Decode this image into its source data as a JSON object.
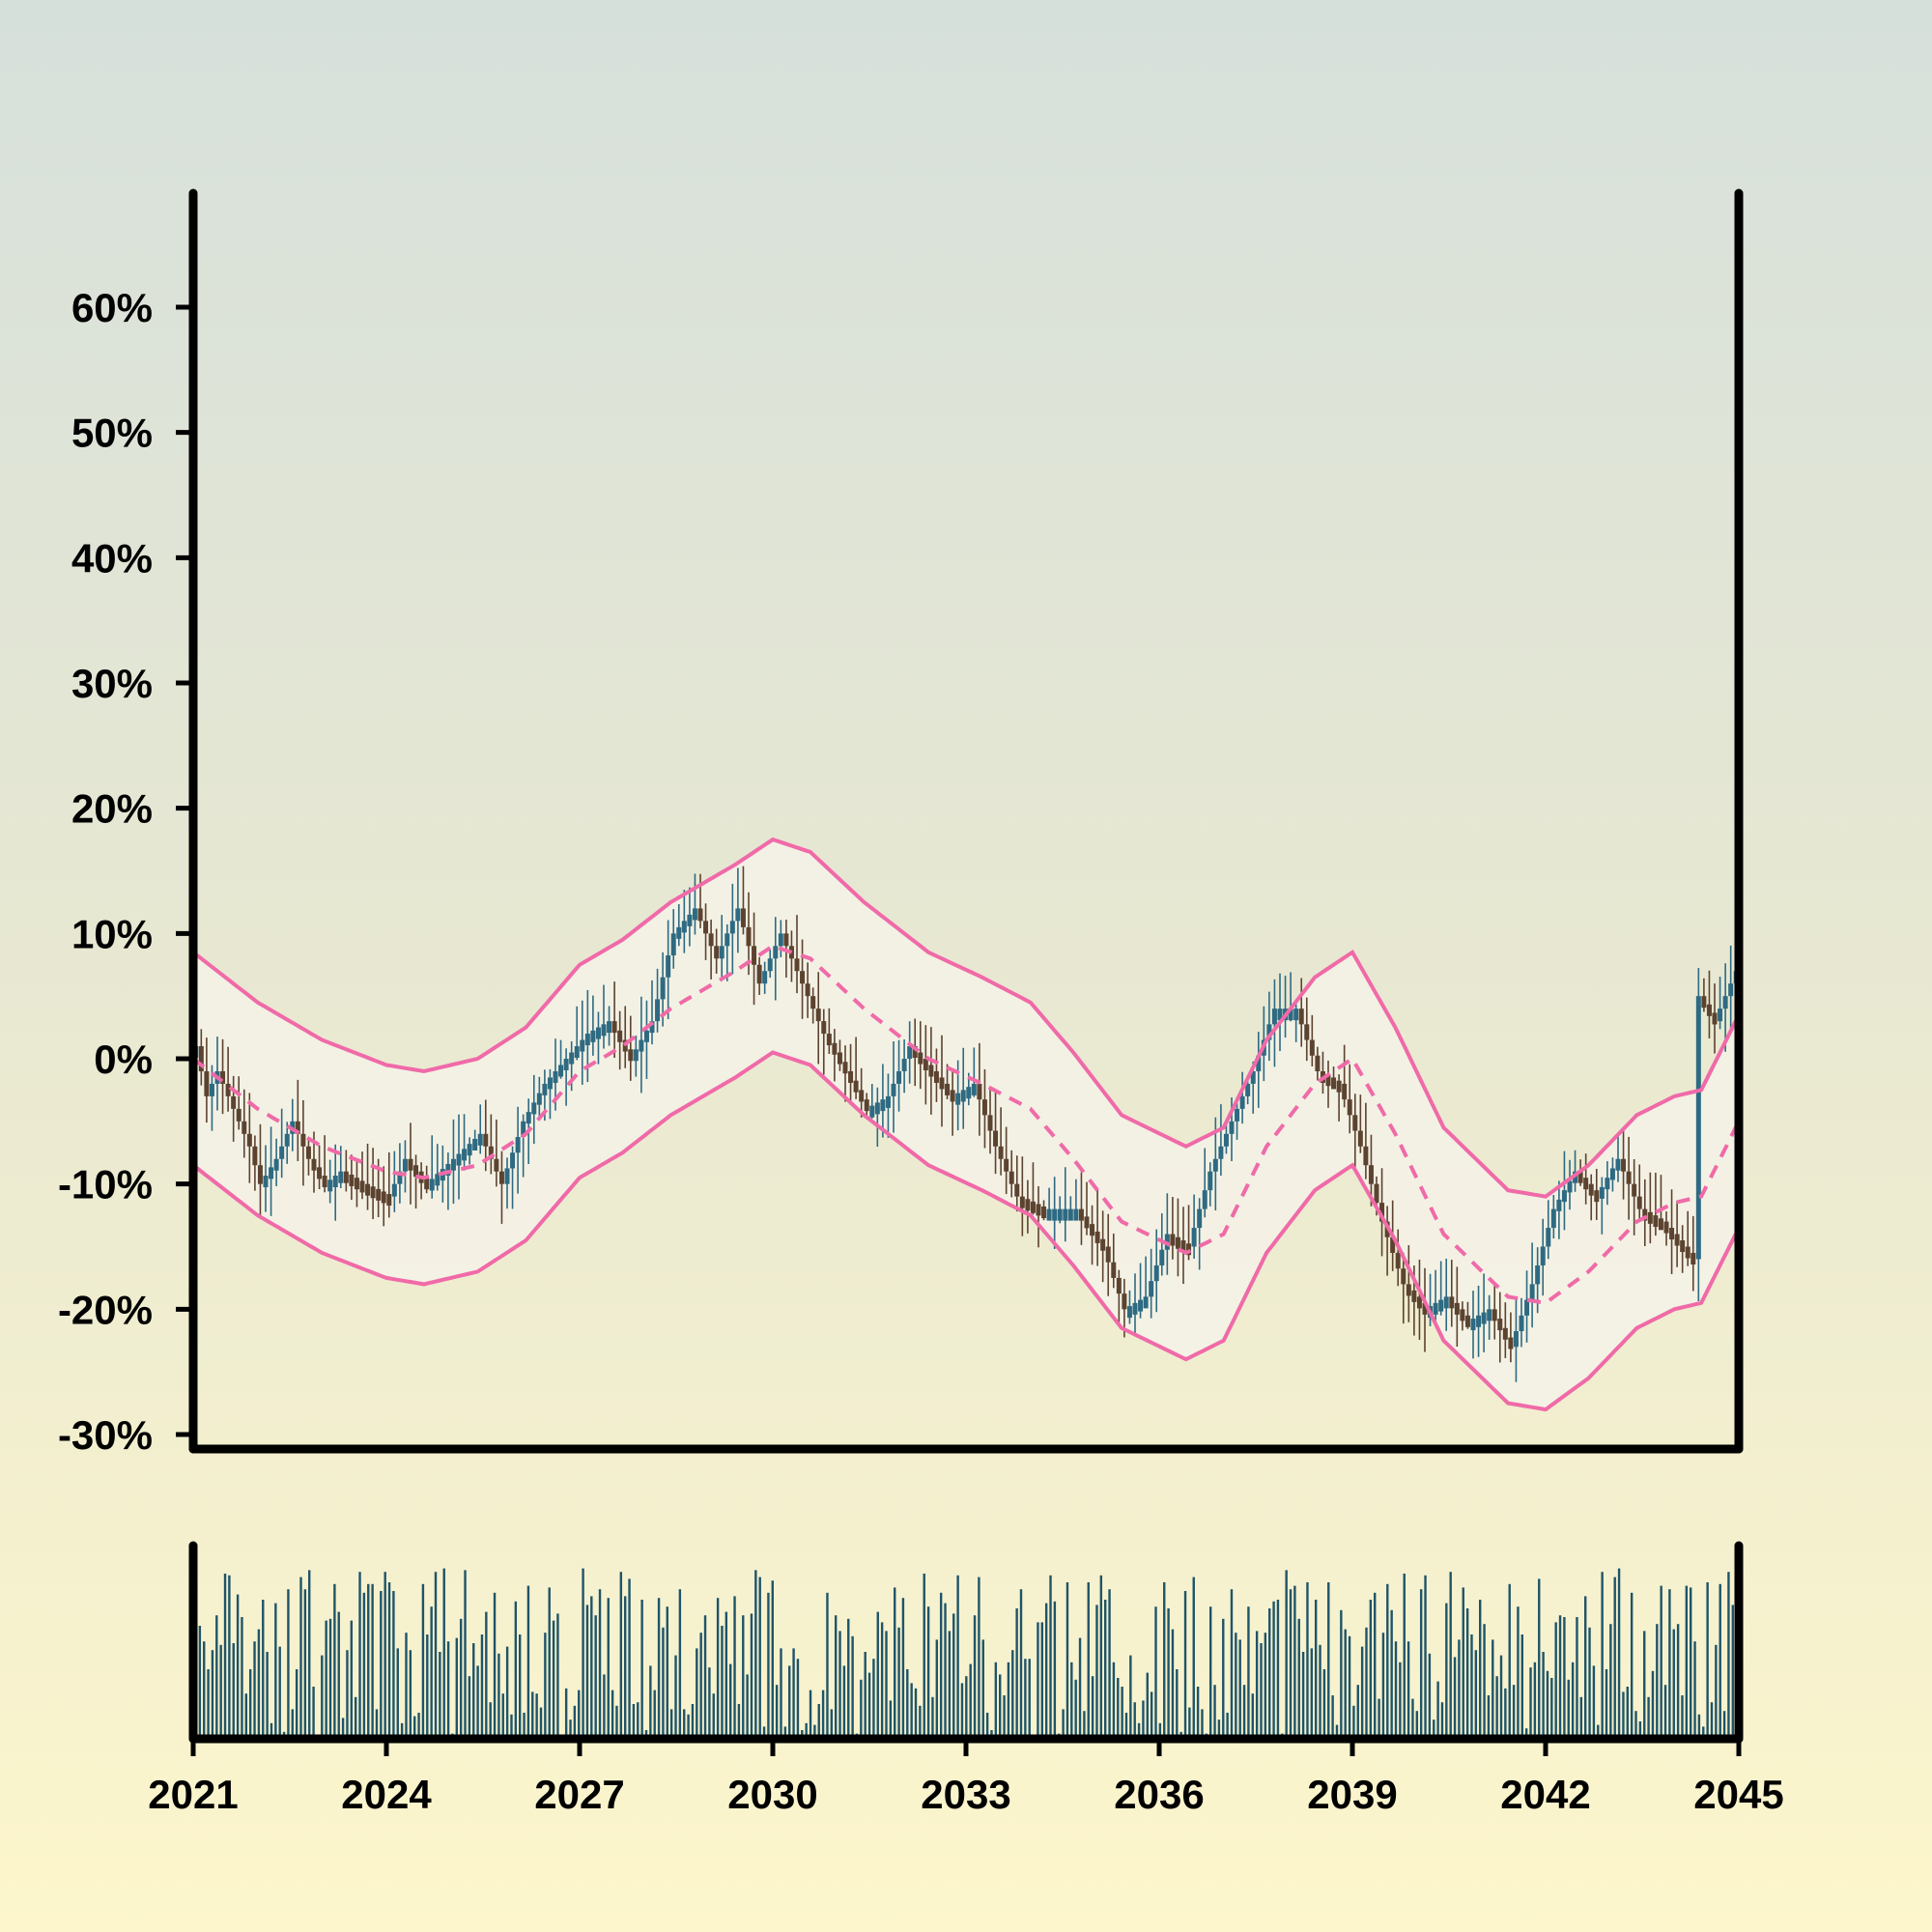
{
  "chart_data": {
    "type": "candlestick",
    "title": "",
    "xlabel": "",
    "ylabel": "",
    "x_axis": {
      "type": "date",
      "start": "2021-01",
      "end": "2045-01",
      "tick_labels": [
        "2021",
        "2024",
        "2027",
        "2030",
        "2033",
        "2036",
        "2039",
        "2042",
        "2045"
      ]
    },
    "y_axis": {
      "ylim": [
        -0.3,
        0.7
      ],
      "tick_values": [
        -0.3,
        -0.2,
        -0.1,
        0.0,
        0.1,
        0.2,
        0.3,
        0.4,
        0.5,
        0.6
      ],
      "tick_labels": [
        "-30%",
        "-20%",
        "-10%",
        "0%",
        "10%",
        "20%",
        "30%",
        "40%",
        "50%",
        "60%"
      ]
    },
    "grid": false,
    "candle_interval_months": 1,
    "close_path": [
      [
        "2021-01",
        0.01
      ],
      [
        "2021-03",
        -0.03
      ],
      [
        "2021-05",
        -0.01
      ],
      [
        "2021-08",
        -0.04
      ],
      [
        "2021-11",
        -0.07
      ],
      [
        "2022-01",
        -0.1
      ],
      [
        "2022-04",
        -0.08
      ],
      [
        "2022-07",
        -0.05
      ],
      [
        "2022-10",
        -0.08
      ],
      [
        "2023-01",
        -0.1
      ],
      [
        "2023-04",
        -0.09
      ],
      [
        "2023-08",
        -0.1
      ],
      [
        "2024-01",
        -0.11
      ],
      [
        "2024-04",
        -0.08
      ],
      [
        "2024-08",
        -0.1
      ],
      [
        "2025-01",
        -0.08
      ],
      [
        "2025-06",
        -0.06
      ],
      [
        "2025-10",
        -0.1
      ],
      [
        "2026-02",
        -0.05
      ],
      [
        "2026-06",
        -0.02
      ],
      [
        "2026-10",
        0.0
      ],
      [
        "2027-02",
        0.02
      ],
      [
        "2027-06",
        0.03
      ],
      [
        "2027-10",
        0.0
      ],
      [
        "2028-02",
        0.03
      ],
      [
        "2028-06",
        0.1
      ],
      [
        "2028-10",
        0.12
      ],
      [
        "2029-02",
        0.08
      ],
      [
        "2029-06",
        0.12
      ],
      [
        "2029-10",
        0.06
      ],
      [
        "2030-02",
        0.1
      ],
      [
        "2030-06",
        0.06
      ],
      [
        "2030-10",
        0.02
      ],
      [
        "2031-02",
        -0.01
      ],
      [
        "2031-06",
        -0.04
      ],
      [
        "2031-10",
        -0.03
      ],
      [
        "2032-02",
        0.01
      ],
      [
        "2032-06",
        -0.01
      ],
      [
        "2032-10",
        -0.03
      ],
      [
        "2033-02",
        -0.02
      ],
      [
        "2033-06",
        -0.07
      ],
      [
        "2033-10",
        -0.11
      ],
      [
        "2034-03",
        -0.12
      ],
      [
        "2034-09",
        -0.12
      ],
      [
        "2035-02",
        -0.15
      ],
      [
        "2035-06",
        -0.2
      ],
      [
        "2035-10",
        -0.19
      ],
      [
        "2036-02",
        -0.14
      ],
      [
        "2036-06",
        -0.15
      ],
      [
        "2036-10",
        -0.09
      ],
      [
        "2037-02",
        -0.05
      ],
      [
        "2037-06",
        -0.01
      ],
      [
        "2037-10",
        0.04
      ],
      [
        "2038-02",
        0.04
      ],
      [
        "2038-06",
        -0.01
      ],
      [
        "2038-10",
        -0.02
      ],
      [
        "2039-02",
        -0.07
      ],
      [
        "2039-06",
        -0.13
      ],
      [
        "2039-10",
        -0.18
      ],
      [
        "2040-02",
        -0.2
      ],
      [
        "2040-06",
        -0.19
      ],
      [
        "2040-10",
        -0.21
      ],
      [
        "2041-02",
        -0.2
      ],
      [
        "2041-06",
        -0.23
      ],
      [
        "2041-10",
        -0.18
      ],
      [
        "2042-02",
        -0.12
      ],
      [
        "2042-06",
        -0.09
      ],
      [
        "2042-10",
        -0.11
      ],
      [
        "2043-02",
        -0.08
      ],
      [
        "2043-06",
        -0.12
      ],
      [
        "2043-10",
        -0.13
      ],
      [
        "2044-02",
        -0.15
      ],
      [
        "2044-04",
        -0.16
      ],
      [
        "2044-05",
        0.05
      ],
      [
        "2044-08",
        0.03
      ],
      [
        "2044-12",
        0.07
      ],
      [
        "2045-01",
        0.08
      ]
    ],
    "moving_average_path": [
      [
        "2021-01",
        0.0
      ],
      [
        "2022-01",
        -0.04
      ],
      [
        "2023-01",
        -0.07
      ],
      [
        "2024-01",
        -0.09
      ],
      [
        "2024-08",
        -0.095
      ],
      [
        "2025-06",
        -0.085
      ],
      [
        "2026-03",
        -0.06
      ],
      [
        "2027-01",
        -0.01
      ],
      [
        "2027-09",
        0.01
      ],
      [
        "2028-06",
        0.04
      ],
      [
        "2029-06",
        0.07
      ],
      [
        "2030-01",
        0.09
      ],
      [
        "2030-08",
        0.08
      ],
      [
        "2031-06",
        0.04
      ],
      [
        "2032-06",
        0.0
      ],
      [
        "2033-04",
        -0.02
      ],
      [
        "2034-01",
        -0.04
      ],
      [
        "2034-09",
        -0.08
      ],
      [
        "2035-06",
        -0.13
      ],
      [
        "2036-06",
        -0.155
      ],
      [
        "2037-01",
        -0.14
      ],
      [
        "2037-09",
        -0.07
      ],
      [
        "2038-06",
        -0.02
      ],
      [
        "2039-01",
        0.0
      ],
      [
        "2039-09",
        -0.06
      ],
      [
        "2040-06",
        -0.14
      ],
      [
        "2041-06",
        -0.19
      ],
      [
        "2042-01",
        -0.195
      ],
      [
        "2042-09",
        -0.17
      ],
      [
        "2043-06",
        -0.13
      ],
      [
        "2044-01",
        -0.115
      ],
      [
        "2044-06",
        -0.11
      ],
      [
        "2045-01",
        -0.05
      ]
    ],
    "band_offset": 0.085,
    "series": [
      {
        "role": "candles",
        "up_color": "#2e6a82",
        "down_color": "#5c4330"
      },
      {
        "role": "moving_average",
        "color": "#f06aa8",
        "style": "dashed"
      },
      {
        "role": "upper_band",
        "color": "#f06aa8",
        "style": "solid"
      },
      {
        "role": "lower_band",
        "color": "#f06aa8",
        "style": "solid"
      },
      {
        "role": "band_fill",
        "color": "#f4f2e8"
      }
    ],
    "volume": {
      "color": "#1f5468",
      "relative_scale": [
        0,
        1
      ],
      "values": [
        0.36,
        0.65,
        0.56,
        0.4,
        0.51,
        0.71,
        0.54,
        0.95,
        0.94,
        0.55,
        0.83,
        0.7,
        0.26,
        0.4,
        0.56,
        0.63,
        0.8,
        0.5,
        0.09,
        0.78,
        0.53,
        0.04,
        0.86,
        0.17,
        0.4,
        0.93,
        0.86,
        0.97,
        0.3,
        0.02,
        0.48,
        0.68,
        0.69,
        0.89,
        0.73,
        0.12,
        0.51,
        0.68,
        0.24,
        0.96,
        0.84,
        0.89,
        0.89,
        0.17,
        0.85,
        0.96,
        0.9,
        0.85,
        0.52,
        0.09,
        0.61,
        0.51,
        0.13,
        0.15,
        0.89,
        0.6,
        0.76,
        0.96,
        0.5,
        0.98,
        0.56,
        0.03,
        0.58,
        0.69,
        0.97,
        0.36,
        0.55,
        0.42,
        0.6,
        0.73,
        0.21,
        0.84,
        0.49,
        0.26,
        0.53,
        0.14,
        0.79,
        0.6,
        0.15,
        0.88,
        0.27,
        0.26,
        0.18,
        0.61,
        0.87,
        0.68,
        0.72,
        0.02,
        0.29,
        0.11,
        0.19,
        0.28,
        0.98,
        0.77,
        0.82,
        0.71,
        0.86,
        0.37,
        0.81,
        0.28,
        0.19,
        0.96,
        0.82,
        0.92,
        0.2,
        0.21,
        0.8,
        0.05,
        0.42,
        0.28,
        0.81,
        0.64,
        0.76,
        0.17,
        0.48,
        0.86,
        0.17,
        0.14,
        0.2,
        0.52,
        0.61,
        0.71,
        0.41,
        0.26,
        0.81,
        0.65,
        0.73,
        0.43,
        0.82,
        0.2,
        0.71,
        0.37,
        0.72,
        0.97,
        0.93,
        0.07,
        0.84,
        0.91,
        0.31,
        0.52,
        0.07,
        0.42,
        0.52,
        0.46,
        0.05,
        0.09,
        0.28,
        0.08,
        0.2,
        0.28,
        0.84,
        0.17,
        0.71,
        0.62,
        0.42,
        0.69,
        0.59,
        0.03,
        0.34,
        0.5,
        0.38,
        0.46,
        0.73,
        0.67,
        0.62,
        0.22,
        0.87,
        0.64,
        0.81,
        0.4,
        0.32,
        0.29,
        0.19,
        0.95,
        0.76,
        0.24,
        0.57,
        0.84,
        0.78,
        0.62,
        0.72,
        0.94,
        0.32,
        0.36,
        0.43,
        0.71,
        0.93,
        0.57,
        0.15,
        0.05,
        0.44,
        0.37,
        0.25,
        0.44,
        0.51,
        0.75,
        0.86,
        0.46,
        0.46,
        0.02,
        0.67,
        0.67,
        0.78,
        0.94,
        0.79,
        0.03,
        0.17,
        0.9,
        0.44,
        0.34,
        0.58,
        0.16,
        0.9,
        0.36,
        0.77,
        0.94,
        0.8,
        0.86,
        0.44,
        0.35,
        0.3,
        0.15,
        0.48,
        0.21,
        0.09,
        0.22,
        0.38,
        0.27,
        0.76,
        0.09,
        0.9,
        0.75,
        0.63,
        0.4,
        0.04,
        0.85,
        0.18,
        0.93,
        0.3,
        0.17,
        0.03,
        0.76,
        0.31,
        0.11,
        0.69,
        0.15,
        0.86,
        0.61,
        0.57,
        0.31,
        0.76,
        0.26,
        0.62,
        0.55,
        0.61,
        0.75,
        0.79,
        0.8,
        0.03,
        0.97,
        0.86,
        0.88,
        0.69,
        0.5,
        0.9,
        0.52,
        0.8,
        0.54,
        0.4,
        0.9,
        0.25,
        0.08,
        0.74,
        0.63,
        0.59,
        0.19,
        0.31,
        0.53,
        0.64,
        0.8,
        0.84,
        0.23,
        0.61,
        0.89,
        0.74,
        0.56,
        0.44,
        0.95,
        0.56,
        0.23,
        0.16,
        0.86,
        0.94,
        0.49,
        0.11,
        0.33,
        0.21,
        0.78,
        0.96,
        0.47,
        0.57,
        0.87,
        0.75,
        0.6,
        0.51,
        0.8,
        0.66,
        0.25,
        0.57,
        0.36,
        0.48,
        0.29,
        0.89,
        0.31,
        0.76,
        0.6,
        0.06,
        0.41,
        0.44,
        0.92,
        0.5,
        0.39,
        0.35,
        0.67,
        0.71,
        0.7,
        0.34,
        0.44,
        0.7,
        0.24,
        0.82,
        0.64,
        0.42,
        0.08,
        0.96,
        0.4,
        0.66,
        0.93,
        0.98,
        0.27,
        0.3,
        0.84,
        0.16,
        0.1,
        0.62,
        0.24,
        0.39,
        0.66,
        0.88,
        0.31,
        0.86,
        0.63,
        0.66,
        0.25,
        0.88,
        0.87,
        0.56,
        0.14,
        0.07,
        0.9,
        0.21,
        0.54,
        0.89,
        0.16,
        0.96,
        0.77,
        0.7
      ]
    }
  }
}
